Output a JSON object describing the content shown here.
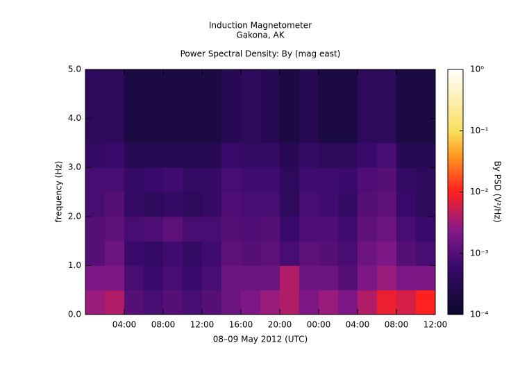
{
  "chart_data": {
    "type": "heatmap",
    "title": "Induction Magnetometer",
    "subtitle": "Gakona, AK",
    "plot_title": "Power Spectral Density: By (mag east)",
    "xlabel": "08–09 May 2012 (UTC)",
    "ylabel": "frequency (Hz)",
    "colorbar_label": "By PSD (V²/Hz)",
    "xlim": [
      0,
      36
    ],
    "xticks": [
      {
        "value": 4,
        "label": "04:00"
      },
      {
        "value": 8,
        "label": "08:00"
      },
      {
        "value": 12,
        "label": "12:00"
      },
      {
        "value": 16,
        "label": "16:00"
      },
      {
        "value": 20,
        "label": "20:00"
      },
      {
        "value": 24,
        "label": "00:00"
      },
      {
        "value": 28,
        "label": "04:00"
      },
      {
        "value": 32,
        "label": "08:00"
      },
      {
        "value": 36,
        "label": "12:00"
      }
    ],
    "ylim": [
      0,
      5
    ],
    "yticks": [
      {
        "value": 0,
        "label": "0.0"
      },
      {
        "value": 1,
        "label": "1.0"
      },
      {
        "value": 2,
        "label": "2.0"
      },
      {
        "value": 3,
        "label": "3.0"
      },
      {
        "value": 4,
        "label": "4.0"
      },
      {
        "value": 5,
        "label": "5.0"
      }
    ],
    "zlim": [
      0.0001,
      1
    ],
    "zscale": "log",
    "zticks": [
      {
        "value": 0.0001,
        "label": "10⁻⁴"
      },
      {
        "value": 0.001,
        "label": "10⁻³"
      },
      {
        "value": 0.01,
        "label": "10⁻²"
      },
      {
        "value": 0.1,
        "label": "10⁻¹"
      },
      {
        "value": 1,
        "label": "10⁰"
      }
    ],
    "z": [
      [
        0.003,
        0.004,
        0.001,
        0.0008,
        0.001,
        0.0008,
        0.001,
        0.0015,
        0.002,
        0.003,
        0.004,
        0.002,
        0.003,
        0.002,
        0.004,
        0.008,
        0.006,
        0.01
      ],
      [
        0.002,
        0.002,
        0.0008,
        0.0006,
        0.0008,
        0.0006,
        0.0008,
        0.0015,
        0.0015,
        0.0015,
        0.004,
        0.0015,
        0.0015,
        0.001,
        0.002,
        0.003,
        0.002,
        0.002
      ],
      [
        0.001,
        0.0015,
        0.0006,
        0.0005,
        0.0007,
        0.0005,
        0.0007,
        0.0012,
        0.001,
        0.0012,
        0.0008,
        0.0012,
        0.001,
        0.0008,
        0.0015,
        0.002,
        0.001,
        0.0008
      ],
      [
        0.001,
        0.0012,
        0.0008,
        0.0009,
        0.0012,
        0.0008,
        0.0008,
        0.001,
        0.0009,
        0.001,
        0.0006,
        0.0009,
        0.0009,
        0.0007,
        0.0012,
        0.0015,
        0.0008,
        0.0006
      ],
      [
        0.0008,
        0.001,
        0.0005,
        0.0004,
        0.0005,
        0.0004,
        0.0005,
        0.0009,
        0.0008,
        0.0008,
        0.0004,
        0.0008,
        0.0007,
        0.0005,
        0.001,
        0.0012,
        0.0006,
        0.0004
      ],
      [
        0.0008,
        0.0008,
        0.0005,
        0.0006,
        0.0007,
        0.0005,
        0.0005,
        0.0008,
        0.0007,
        0.0007,
        0.0004,
        0.0007,
        0.0007,
        0.0006,
        0.0009,
        0.001,
        0.0005,
        0.0004
      ],
      [
        0.0005,
        0.0006,
        0.0003,
        0.0003,
        0.0003,
        0.0003,
        0.0003,
        0.0006,
        0.0005,
        0.0005,
        0.0003,
        0.0005,
        0.0004,
        0.0004,
        0.0006,
        0.0008,
        0.0003,
        0.0003
      ],
      [
        0.0004,
        0.0004,
        0.0002,
        0.0002,
        0.0002,
        0.0002,
        0.0002,
        0.0003,
        0.0004,
        0.0003,
        0.0002,
        0.0003,
        0.0002,
        0.0002,
        0.0004,
        0.0004,
        0.0002,
        0.0002
      ],
      [
        0.0004,
        0.0004,
        0.0002,
        0.0002,
        0.0002,
        0.0002,
        0.0002,
        0.0003,
        0.0004,
        0.0003,
        0.0002,
        0.0003,
        0.0002,
        0.0002,
        0.0004,
        0.0004,
        0.0002,
        0.0002
      ],
      [
        0.0004,
        0.0004,
        0.0002,
        0.0002,
        0.0002,
        0.0002,
        0.0002,
        0.0003,
        0.0004,
        0.0003,
        0.0002,
        0.0003,
        0.0002,
        0.0002,
        0.0004,
        0.0004,
        0.0002,
        0.0002
      ]
    ]
  }
}
